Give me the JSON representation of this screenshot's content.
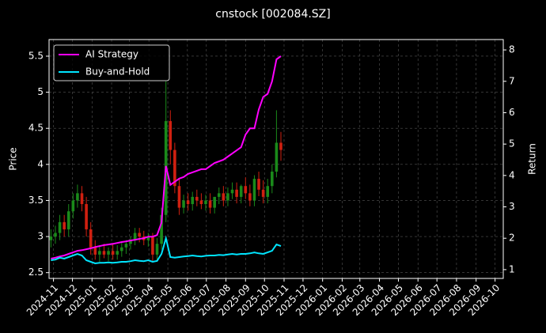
{
  "chart_data": {
    "type": "candlestick",
    "title": "cnstock [002084.SZ]",
    "ylabel": "Price",
    "y2label": "Return",
    "background": "#000000",
    "grid": true,
    "legend_position": "upper left",
    "up_color": "#1a8a1a",
    "down_color": "#d02010",
    "x": [
      "2024-10-28",
      "2024-11-04",
      "2024-11-11",
      "2024-11-18",
      "2024-11-25",
      "2024-12-02",
      "2024-12-09",
      "2024-12-16",
      "2024-12-23",
      "2024-12-30",
      "2025-01-06",
      "2025-01-13",
      "2025-01-20",
      "2025-01-27",
      "2025-02-03",
      "2025-02-10",
      "2025-02-17",
      "2025-02-24",
      "2025-03-03",
      "2025-03-10",
      "2025-03-17",
      "2025-03-24",
      "2025-03-31",
      "2025-04-07",
      "2025-04-14",
      "2025-04-21",
      "2025-04-28",
      "2025-05-05",
      "2025-05-12",
      "2025-05-19",
      "2025-05-26",
      "2025-06-02",
      "2025-06-09",
      "2025-06-16",
      "2025-06-23",
      "2025-06-30",
      "2025-07-07",
      "2025-07-14",
      "2025-07-21",
      "2025-07-28",
      "2025-08-04",
      "2025-08-11",
      "2025-08-18",
      "2025-08-25",
      "2025-09-01",
      "2025-09-08",
      "2025-09-15",
      "2025-09-22",
      "2025-09-29",
      "2025-10-06",
      "2025-10-13",
      "2025-10-20",
      "2025-10-27"
    ],
    "open": [
      2.95,
      3.0,
      3.05,
      3.2,
      3.1,
      3.35,
      3.5,
      3.6,
      3.45,
      3.1,
      2.85,
      2.75,
      2.8,
      2.75,
      2.8,
      2.75,
      2.8,
      2.85,
      2.9,
      2.95,
      3.05,
      3.0,
      2.95,
      3.0,
      2.75,
      2.9,
      3.3,
      4.6,
      4.2,
      3.7,
      3.4,
      3.5,
      3.45,
      3.55,
      3.5,
      3.45,
      3.5,
      3.4,
      3.55,
      3.6,
      3.5,
      3.6,
      3.65,
      3.55,
      3.7,
      3.6,
      3.5,
      3.8,
      3.65,
      3.55,
      3.7,
      3.9,
      4.3
    ],
    "high": [
      3.1,
      3.15,
      3.3,
      3.3,
      3.45,
      3.6,
      3.72,
      3.7,
      3.55,
      3.2,
      2.95,
      2.88,
      2.9,
      2.85,
      2.9,
      2.88,
      2.92,
      2.95,
      3.0,
      3.12,
      3.12,
      3.08,
      3.05,
      3.05,
      2.98,
      3.4,
      5.15,
      4.75,
      4.3,
      3.8,
      3.58,
      3.6,
      3.62,
      3.65,
      3.6,
      3.58,
      3.6,
      3.55,
      3.68,
      3.7,
      3.68,
      3.75,
      3.75,
      3.72,
      3.82,
      3.72,
      3.85,
      3.9,
      3.78,
      3.8,
      4.0,
      4.75,
      4.45
    ],
    "low": [
      2.85,
      2.9,
      2.95,
      3.0,
      3.0,
      3.25,
      3.4,
      3.35,
      3.0,
      2.75,
      2.68,
      2.65,
      2.7,
      2.66,
      2.68,
      2.68,
      2.72,
      2.76,
      2.82,
      2.88,
      2.92,
      2.88,
      2.86,
      2.65,
      2.65,
      2.82,
      3.2,
      4.0,
      3.6,
      3.3,
      3.32,
      3.36,
      3.36,
      3.42,
      3.38,
      3.36,
      3.32,
      3.32,
      3.45,
      3.42,
      3.42,
      3.52,
      3.46,
      3.46,
      3.52,
      3.42,
      3.42,
      3.56,
      3.46,
      3.46,
      3.6,
      3.82,
      4.05
    ],
    "close": [
      3.0,
      3.05,
      3.2,
      3.1,
      3.35,
      3.5,
      3.6,
      3.45,
      3.1,
      2.85,
      2.75,
      2.8,
      2.75,
      2.8,
      2.75,
      2.8,
      2.85,
      2.9,
      2.95,
      3.05,
      3.0,
      2.95,
      3.0,
      2.75,
      2.9,
      3.3,
      4.6,
      4.2,
      3.7,
      3.4,
      3.5,
      3.45,
      3.55,
      3.5,
      3.45,
      3.5,
      3.4,
      3.55,
      3.6,
      3.5,
      3.6,
      3.65,
      3.55,
      3.7,
      3.6,
      3.5,
      3.8,
      3.65,
      3.55,
      3.7,
      3.9,
      4.3,
      4.2
    ],
    "series": [
      {
        "name": "AI Strategy",
        "color": "#ff00ff",
        "axis": "y2",
        "values": [
          1.35,
          1.38,
          1.42,
          1.45,
          1.5,
          1.55,
          1.6,
          1.62,
          1.65,
          1.68,
          1.72,
          1.75,
          1.78,
          1.8,
          1.82,
          1.85,
          1.88,
          1.9,
          1.93,
          1.95,
          1.98,
          2.0,
          2.05,
          2.05,
          2.1,
          2.5,
          4.3,
          3.7,
          3.8,
          3.9,
          3.95,
          4.05,
          4.1,
          4.15,
          4.2,
          4.2,
          4.3,
          4.4,
          4.45,
          4.5,
          4.6,
          4.7,
          4.8,
          4.9,
          5.3,
          5.5,
          5.5,
          6.1,
          6.5,
          6.6,
          7.0,
          7.7,
          7.8
        ]
      },
      {
        "name": "Buy-and-Hold",
        "color": "#00e5ff",
        "axis": "y2",
        "values": [
          1.3,
          1.32,
          1.38,
          1.35,
          1.4,
          1.45,
          1.5,
          1.45,
          1.3,
          1.25,
          1.2,
          1.22,
          1.22,
          1.23,
          1.22,
          1.23,
          1.25,
          1.25,
          1.27,
          1.3,
          1.28,
          1.27,
          1.3,
          1.25,
          1.28,
          1.5,
          2.0,
          1.4,
          1.38,
          1.4,
          1.42,
          1.43,
          1.45,
          1.43,
          1.42,
          1.44,
          1.45,
          1.45,
          1.47,
          1.46,
          1.48,
          1.5,
          1.48,
          1.5,
          1.5,
          1.52,
          1.55,
          1.52,
          1.5,
          1.55,
          1.6,
          1.8,
          1.75
        ]
      }
    ],
    "xlim": [
      "2024-10-25",
      "2026-10-14"
    ],
    "xticks": [
      "2024-11",
      "2024-12",
      "2025-01",
      "2025-02",
      "2025-03",
      "2025-04",
      "2025-05",
      "2025-06",
      "2025-07",
      "2025-08",
      "2025-09",
      "2025-10",
      "2025-11",
      "2025-12",
      "2026-01",
      "2026-02",
      "2026-03",
      "2026-04",
      "2026-05",
      "2026-06",
      "2026-07",
      "2026-08",
      "2026-09",
      "2026-10"
    ],
    "ylim": [
      2.42,
      5.73
    ],
    "yticks": [
      2.5,
      3.0,
      3.5,
      4.0,
      4.5,
      5.0,
      5.5
    ],
    "y2lim": [
      0.72,
      8.33
    ],
    "y2ticks": [
      1,
      2,
      3,
      4,
      5,
      6,
      7,
      8
    ]
  }
}
